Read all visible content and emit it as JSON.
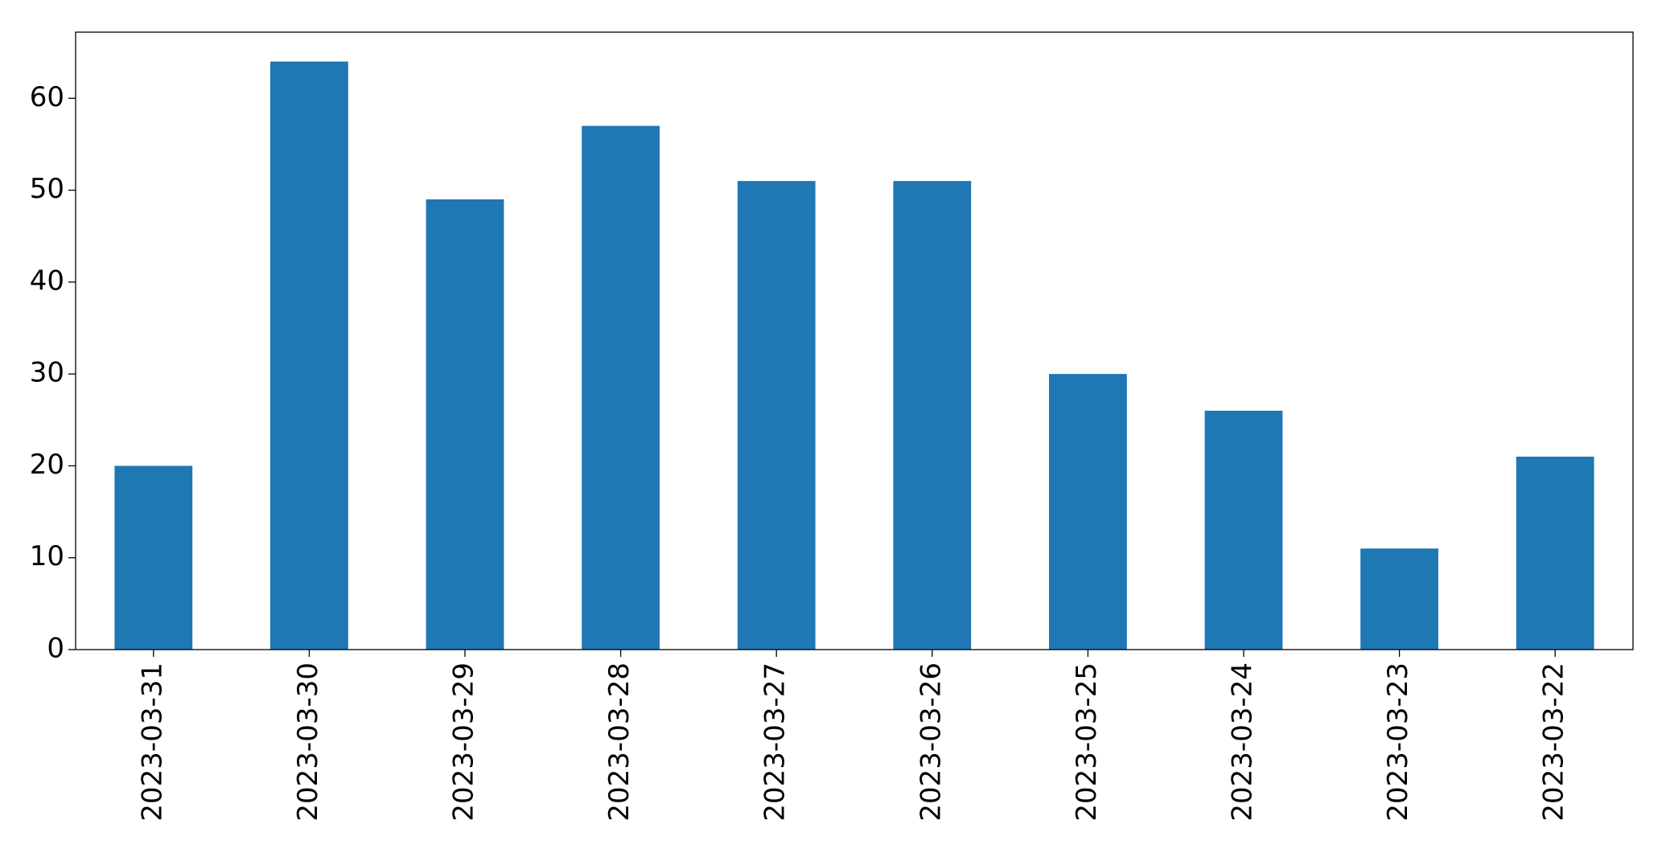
{
  "chart_data": {
    "type": "bar",
    "categories": [
      "2023-03-31",
      "2023-03-30",
      "2023-03-29",
      "2023-03-28",
      "2023-03-27",
      "2023-03-26",
      "2023-03-25",
      "2023-03-24",
      "2023-03-23",
      "2023-03-22"
    ],
    "values": [
      20,
      64,
      49,
      57,
      51,
      51,
      30,
      26,
      11,
      21
    ],
    "color": "#1f77b4",
    "ylim": [
      0,
      67.2
    ],
    "yticks": [
      0,
      10,
      20,
      30,
      40,
      50,
      60
    ],
    "grid": false
  }
}
